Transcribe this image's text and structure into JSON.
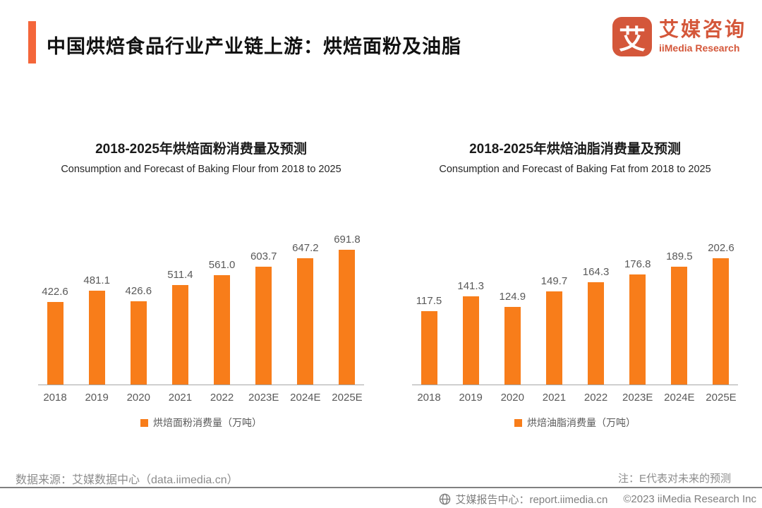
{
  "header": {
    "title": "中国烘焙食品行业产业链上游：烘焙面粉及油脂",
    "accent_color": "#F4663A",
    "logo": {
      "glyph": "艾",
      "name_zh": "艾媒咨询",
      "name_en": "iiMedia Research",
      "color": "#D4573A"
    }
  },
  "chart_data": [
    {
      "type": "bar",
      "title": "2018-2025年烘焙面粉消费量及预测",
      "subtitle": "Consumption and Forecast of Baking Flour from 2018 to 2025",
      "categories": [
        "2018",
        "2019",
        "2020",
        "2021",
        "2022",
        "2023E",
        "2024E",
        "2025E"
      ],
      "values": [
        422.6,
        481.1,
        426.6,
        511.4,
        561.0,
        603.7,
        647.2,
        691.8
      ],
      "legend": "烘焙面粉消费量（万吨）",
      "bar_color": "#F87D1A",
      "xlabel": "",
      "ylabel": "万吨",
      "grid": false,
      "legend_position": "bottom"
    },
    {
      "type": "bar",
      "title": "2018-2025年烘焙油脂消费量及预测",
      "subtitle": "Consumption and Forecast of Baking Fat from 2018 to 2025",
      "categories": [
        "2018",
        "2019",
        "2020",
        "2021",
        "2022",
        "2023E",
        "2024E",
        "2025E"
      ],
      "values": [
        117.5,
        141.3,
        124.9,
        149.7,
        164.3,
        176.8,
        189.5,
        202.6
      ],
      "legend": "烘焙油脂消费量（万吨）",
      "bar_color": "#F87D1A",
      "xlabel": "",
      "ylabel": "万吨",
      "grid": false,
      "legend_position": "bottom"
    }
  ],
  "footer": {
    "source": "数据来源：艾媒数据中心（data.iimedia.cn）",
    "note": "注：E代表对未来的预测",
    "report_center": "艾媒报告中心：report.iimedia.cn",
    "copyright": "©2023 iiMedia Research Inc"
  }
}
